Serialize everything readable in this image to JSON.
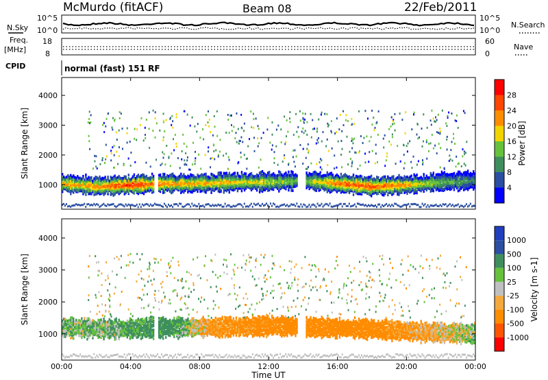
{
  "header": {
    "station": "McMurdo (fitACF)",
    "beam": "Beam 08",
    "date": "22/Feb/2011"
  },
  "top_panels": {
    "nsky_label": "N.Sky",
    "nsky_ticks": [
      "10^5",
      "10^0"
    ],
    "nsearch_label": "N.Search",
    "nsearch_ticks": [
      "10^5",
      "10^0"
    ],
    "freq_label_1": "Freq.",
    "freq_label_2": "[MHz]",
    "freq_ticks": [
      "18",
      "8"
    ],
    "nave_label": "Nave",
    "nave_ticks": [
      "60",
      "0"
    ],
    "cpid_label": "CPID",
    "cpid_value": "normal (fast) 151 RF"
  },
  "colors": {
    "power_scale": [
      "#0000ff",
      "#2a4fa3",
      "#3f8f5e",
      "#66c23c",
      "#f2d500",
      "#ff8c00",
      "#ff4500",
      "#ff0000"
    ],
    "velocity_scale": [
      "#ff0000",
      "#ff5500",
      "#ff8c00",
      "#f3a93b",
      "#c0c0c0",
      "#66c23c",
      "#3f8f5e",
      "#2a4fa3",
      "#1f3fbf"
    ]
  },
  "chart_data": [
    {
      "type": "heatmap",
      "name": "power",
      "ylabel": "Slant Range [km]",
      "xlabel": "",
      "xticks": [
        "00:00",
        "04:00",
        "08:00",
        "12:00",
        "16:00",
        "20:00",
        "00:00"
      ],
      "yticks": [
        "1000",
        "2000",
        "3000",
        "4000"
      ],
      "ylim": [
        180,
        4600
      ],
      "xlim_hours": [
        0,
        24
      ],
      "colorbar": {
        "label": "Power [dB]",
        "ticks": [
          "4",
          "8",
          "12",
          "16",
          "20",
          "24",
          "28"
        ],
        "range": [
          0,
          32
        ]
      },
      "main_band": [
        {
          "x": 0,
          "y_center": 1050,
          "value": 22
        },
        {
          "x": 2,
          "y_center": 950,
          "value": 24
        },
        {
          "x": 4,
          "y_center": 1000,
          "value": 30
        },
        {
          "x": 6,
          "y_center": 1050,
          "value": 24
        },
        {
          "x": 8,
          "y_center": 1050,
          "value": 22
        },
        {
          "x": 10,
          "y_center": 1100,
          "value": 20
        },
        {
          "x": 12,
          "y_center": 1100,
          "value": 18
        },
        {
          "x": 14,
          "y_center": 1150,
          "value": 14
        },
        {
          "x": 16,
          "y_center": 1050,
          "value": 26
        },
        {
          "x": 18,
          "y_center": 950,
          "value": 28
        },
        {
          "x": 20,
          "y_center": 1000,
          "value": 22
        },
        {
          "x": 22,
          "y_center": 1100,
          "value": 14
        },
        {
          "x": 24,
          "y_center": 1150,
          "value": 10
        }
      ]
    },
    {
      "type": "heatmap",
      "name": "velocity",
      "ylabel": "Slant Range [km]",
      "xlabel": "Time UT",
      "xticks": [
        "00:00",
        "04:00",
        "08:00",
        "12:00",
        "16:00",
        "20:00",
        "00:00"
      ],
      "yticks": [
        "1000",
        "2000",
        "3000",
        "4000"
      ],
      "ylim": [
        180,
        4600
      ],
      "xlim_hours": [
        0,
        24
      ],
      "colorbar": {
        "label": "Velocity [m s-1]",
        "ticks": [
          "1000",
          "500",
          "100",
          "25",
          "-25",
          "-100",
          "-500",
          "-1000"
        ],
        "range": [
          -1000,
          1000
        ]
      },
      "main_band": [
        {
          "x": 0,
          "y_center": 1200,
          "value": 60
        },
        {
          "x": 3,
          "y_center": 1150,
          "value": 80
        },
        {
          "x": 6,
          "y_center": 1200,
          "value": 200
        },
        {
          "x": 9,
          "y_center": 1200,
          "value": -150
        },
        {
          "x": 12,
          "y_center": 1250,
          "value": -200
        },
        {
          "x": 15,
          "y_center": 1200,
          "value": -250
        },
        {
          "x": 18,
          "y_center": 1150,
          "value": -200
        },
        {
          "x": 21,
          "y_center": 1050,
          "value": -100
        },
        {
          "x": 24,
          "y_center": 1000,
          "value": 50
        }
      ]
    }
  ]
}
